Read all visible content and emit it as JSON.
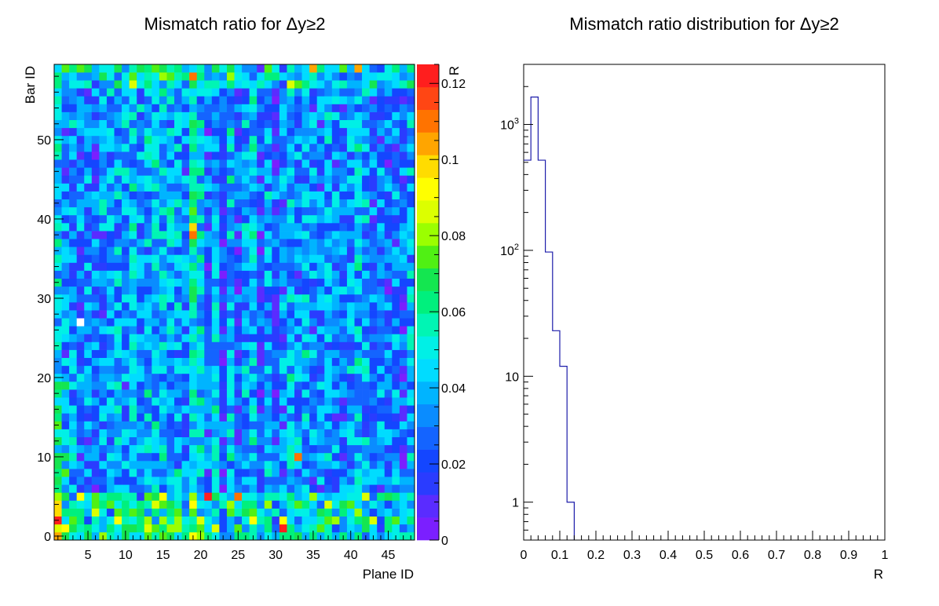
{
  "chart_data": [
    {
      "type": "heatmap",
      "title": "Mismatch ratio for Δy≥2",
      "xlabel": "Plane ID",
      "ylabel": "Bar ID",
      "zlabel": "R",
      "x_range": [
        0.5,
        48.5
      ],
      "y_range": [
        -0.5,
        59.5
      ],
      "z_range": [
        0,
        0.125
      ],
      "x_ticks": [
        5,
        10,
        15,
        20,
        25,
        30,
        35,
        40,
        45
      ],
      "y_ticks": [
        0,
        10,
        20,
        30,
        40,
        50
      ],
      "z_ticks": [
        "0",
        "0.02",
        "0.04",
        "0.06",
        "0.08",
        "0.1",
        "0.12"
      ],
      "palette": [
        "#7b1fff",
        "#5a2cff",
        "#2a3cff",
        "#1446ff",
        "#1464ff",
        "#0a8cff",
        "#00b4ff",
        "#00dcff",
        "#00f0e6",
        "#00f5b4",
        "#00f07d",
        "#14e650",
        "#50f014",
        "#9bff00",
        "#dcff00",
        "#ffff00",
        "#ffdc00",
        "#ffa500",
        "#ff7300",
        "#ff4614",
        "#ff1e1e"
      ],
      "n_planes": 48,
      "n_bars": 60,
      "empty_cells": [
        [
          4,
          27
        ]
      ],
      "hot_cells": [
        [
          19,
          38,
          0.11
        ],
        [
          19,
          58,
          0.11
        ],
        [
          31,
          1,
          0.125
        ],
        [
          21,
          5,
          0.12
        ],
        [
          25,
          5,
          0.11
        ],
        [
          33,
          10,
          0.11
        ],
        [
          41,
          59,
          0.105
        ],
        [
          1,
          2,
          0.125
        ],
        [
          1,
          3,
          0.1
        ],
        [
          35,
          59,
          0.105
        ],
        [
          19,
          39,
          0.1
        ]
      ],
      "column_means": [
        0.045,
        0.03,
        0.035,
        0.03,
        0.028,
        0.03,
        0.032,
        0.035,
        0.038,
        0.035,
        0.04,
        0.035,
        0.038,
        0.04,
        0.042,
        0.04,
        0.038,
        0.032,
        0.05,
        0.042,
        0.026,
        0.04,
        0.018,
        0.04,
        0.022,
        0.035,
        0.04,
        0.018,
        0.035,
        0.025,
        0.03,
        0.04,
        0.03,
        0.04,
        0.032,
        0.03,
        0.035,
        0.03,
        0.03,
        0.035,
        0.04,
        0.035,
        0.03,
        0.03,
        0.025,
        0.03,
        0.025,
        0.035
      ]
    },
    {
      "type": "bar",
      "title": "Mismatch ratio distribution for Δy≥2",
      "xlabel": "R",
      "ylabel": "",
      "xlim": [
        0,
        1
      ],
      "y_scale": "log",
      "ylim": [
        0.5,
        3000
      ],
      "x_ticks": [
        "0",
        "0.1",
        "0.2",
        "0.3",
        "0.4",
        "0.5",
        "0.6",
        "0.7",
        "0.8",
        "0.9",
        "1"
      ],
      "y_ticks": [
        {
          "value": 1,
          "label": "1"
        },
        {
          "value": 10,
          "label": "10"
        },
        {
          "value": 100,
          "label": "10",
          "sup": "2"
        },
        {
          "value": 1000,
          "label": "10",
          "sup": "3"
        }
      ],
      "bin_width": 0.02,
      "bin_edges_start": 0.0,
      "values": [
        520,
        1650,
        520,
        97,
        23,
        12,
        1
      ],
      "line_color": "#1c1caa"
    }
  ]
}
